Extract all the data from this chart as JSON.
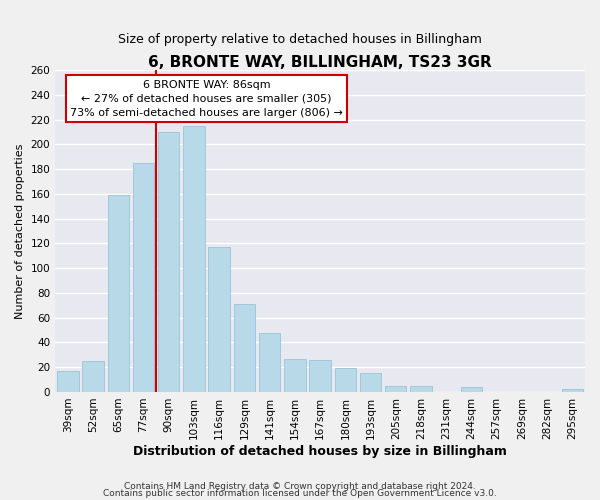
{
  "title": "6, BRONTE WAY, BILLINGHAM, TS23 3GR",
  "subtitle": "Size of property relative to detached houses in Billingham",
  "xlabel": "Distribution of detached houses by size in Billingham",
  "ylabel": "Number of detached properties",
  "categories": [
    "39sqm",
    "52sqm",
    "65sqm",
    "77sqm",
    "90sqm",
    "103sqm",
    "116sqm",
    "129sqm",
    "141sqm",
    "154sqm",
    "167sqm",
    "180sqm",
    "193sqm",
    "205sqm",
    "218sqm",
    "231sqm",
    "244sqm",
    "257sqm",
    "269sqm",
    "282sqm",
    "295sqm"
  ],
  "values": [
    17,
    25,
    159,
    185,
    210,
    215,
    117,
    71,
    48,
    27,
    26,
    19,
    15,
    5,
    5,
    0,
    4,
    0,
    0,
    0,
    2
  ],
  "bar_color": "#b8d9e8",
  "bar_edge_color": "#9cc4d8",
  "vline_color": "#cc0000",
  "annotation_title": "6 BRONTE WAY: 86sqm",
  "annotation_line1": "← 27% of detached houses are smaller (305)",
  "annotation_line2": "73% of semi-detached houses are larger (806) →",
  "annotation_box_color": "#ffffff",
  "annotation_box_edge": "#cc0000",
  "ylim": [
    0,
    260
  ],
  "yticks": [
    0,
    20,
    40,
    60,
    80,
    100,
    120,
    140,
    160,
    180,
    200,
    220,
    240,
    260
  ],
  "footer1": "Contains HM Land Registry data © Crown copyright and database right 2024.",
  "footer2": "Contains public sector information licensed under the Open Government Licence v3.0.",
  "bg_color": "#f0f0f0",
  "plot_bg_color": "#e8e8f0",
  "grid_color": "#ffffff",
  "title_fontsize": 11,
  "subtitle_fontsize": 9,
  "xlabel_fontsize": 9,
  "ylabel_fontsize": 8,
  "tick_fontsize": 7.5,
  "footer_fontsize": 6.5,
  "annotation_fontsize": 8
}
